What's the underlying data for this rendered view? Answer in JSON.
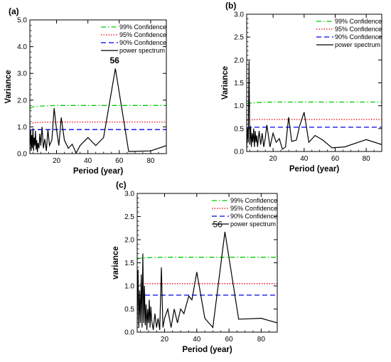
{
  "chart_data": [
    {
      "type": "line",
      "panel_label": "(a)",
      "xlabel": "Period (year)",
      "ylabel": "Variance",
      "xlim": [
        3,
        90
      ],
      "ylim": [
        0,
        5
      ],
      "xticks": [
        20,
        40,
        60,
        80
      ],
      "xtick_labels": [
        "20",
        "40",
        "60",
        "80"
      ],
      "yticks": [
        0,
        1,
        2,
        3,
        4,
        5
      ],
      "ytick_labels": [
        "0.0",
        "1.0",
        "2.0",
        "3.0",
        "4.0",
        "5.0"
      ],
      "legend_position": "top-right",
      "annotations": [
        {
          "text": "56",
          "x": 57,
          "y": 3.38
        }
      ],
      "series": [
        {
          "name": "99% Confidence",
          "color": "#00cc00",
          "style": "dashdot",
          "x": [
            3,
            5,
            10,
            20,
            40,
            90
          ],
          "y": [
            1.7,
            1.75,
            1.78,
            1.8,
            1.8,
            1.8
          ]
        },
        {
          "name": "95% Confidence",
          "color": "#ee0000",
          "style": "dotted",
          "x": [
            3,
            5,
            10,
            20,
            40,
            90
          ],
          "y": [
            1.12,
            1.15,
            1.17,
            1.18,
            1.18,
            1.18
          ]
        },
        {
          "name": "90% Confidence",
          "color": "#0000ee",
          "style": "dashed",
          "x": [
            3,
            5,
            10,
            20,
            40,
            90
          ],
          "y": [
            0.88,
            0.89,
            0.9,
            0.9,
            0.9,
            0.9
          ]
        },
        {
          "name": "power spectrum",
          "color": "#000000",
          "style": "solid",
          "x": [
            3,
            3.4,
            3.8,
            4.2,
            4.6,
            5,
            5.4,
            5.8,
            6.2,
            6.6,
            7,
            7.4,
            7.8,
            8.2,
            8.8,
            9.4,
            10,
            10.8,
            11.6,
            12.5,
            13.5,
            14.5,
            15.5,
            17,
            18.5,
            20,
            21.5,
            23,
            25,
            27.5,
            30,
            32.5,
            35,
            40,
            45,
            50,
            57.5,
            66,
            80,
            90
          ],
          "y": [
            0.3,
            0.9,
            0.1,
            0.7,
            0.2,
            0.95,
            0.1,
            0.6,
            0.3,
            0.85,
            0.15,
            0.5,
            0.05,
            0.4,
            0.2,
            0.75,
            0.3,
            1.0,
            0.2,
            0.55,
            0.1,
            0.9,
            0.3,
            0.5,
            1.7,
            0.9,
            0.3,
            1.35,
            0.5,
            0.2,
            0.35,
            0.02,
            0.3,
            0.6,
            0.3,
            0.6,
            3.18,
            0.08,
            0.1,
            0.3
          ]
        }
      ]
    },
    {
      "type": "line",
      "panel_label": "(b)",
      "xlabel": "Period (year)",
      "ylabel": "Variance",
      "xlim": [
        3,
        90
      ],
      "ylim": [
        0,
        3
      ],
      "xticks": [
        20,
        40,
        60,
        80
      ],
      "xtick_labels": [
        "20",
        "40",
        "60",
        "80"
      ],
      "yticks": [
        0,
        0.5,
        1,
        1.5,
        2,
        2.5,
        3
      ],
      "ytick_labels": [
        "0.0",
        "0.5",
        "1.0",
        "1.5",
        "2.0",
        "2.5",
        "3.0"
      ],
      "legend_position": "top-right",
      "annotations": [],
      "series": [
        {
          "name": "99% Confidence",
          "color": "#00cc00",
          "style": "dashdot",
          "x": [
            3,
            5,
            10,
            20,
            40,
            90
          ],
          "y": [
            1.04,
            1.06,
            1.07,
            1.08,
            1.08,
            1.08
          ]
        },
        {
          "name": "95% Confidence",
          "color": "#ee0000",
          "style": "dotted",
          "x": [
            3,
            5,
            10,
            20,
            40,
            90
          ],
          "y": [
            0.68,
            0.69,
            0.7,
            0.7,
            0.7,
            0.7
          ]
        },
        {
          "name": "90% Confidence",
          "color": "#0000ee",
          "style": "dashed",
          "x": [
            3,
            5,
            10,
            20,
            40,
            90
          ],
          "y": [
            0.52,
            0.53,
            0.53,
            0.53,
            0.53,
            0.53
          ]
        },
        {
          "name": "power spectrum",
          "color": "#000000",
          "style": "solid",
          "x": [
            3,
            3.5,
            4,
            4.5,
            5,
            5.5,
            6,
            6.5,
            7,
            7.5,
            8,
            8.5,
            9,
            9.5,
            10,
            11,
            12,
            13,
            14,
            15,
            16,
            18,
            20,
            22,
            24,
            26,
            28,
            30,
            32,
            35,
            37,
            40,
            43,
            47,
            52,
            58,
            66,
            80,
            90
          ],
          "y": [
            0.1,
            0.5,
            0.2,
            1.98,
            0.15,
            0.55,
            0.1,
            0.4,
            0.2,
            0.5,
            0.1,
            0.45,
            0.2,
            0.35,
            0.1,
            0.45,
            0.15,
            0.4,
            0.1,
            0.3,
            0.58,
            0.1,
            0.4,
            0.2,
            0.28,
            0.05,
            0.1,
            0.75,
            0.22,
            0.25,
            0.55,
            0.86,
            0.2,
            0.35,
            0.25,
            0.08,
            0.1,
            0.26,
            0.15
          ]
        }
      ]
    },
    {
      "type": "line",
      "panel_label": "(c)",
      "xlabel": "Period (year)",
      "ylabel": "variance",
      "xlim": [
        3,
        90
      ],
      "ylim": [
        0,
        3
      ],
      "xticks": [
        20,
        40,
        60,
        80
      ],
      "xtick_labels": [
        "20",
        "40",
        "60",
        "80"
      ],
      "yticks": [
        0,
        0.5,
        1,
        1.5,
        2,
        2.5,
        3
      ],
      "ytick_labels": [
        "0.0",
        "0.5",
        "1.0",
        "1.5",
        "2.0",
        "2.5",
        "3.0"
      ],
      "legend_position": "top-right",
      "annotations": [
        {
          "text": "56",
          "x": 53,
          "y": 2.27
        }
      ],
      "series": [
        {
          "name": "99% Confidence",
          "color": "#00cc00",
          "style": "dashdot",
          "x": [
            3,
            5,
            10,
            20,
            40,
            90
          ],
          "y": [
            1.58,
            1.6,
            1.61,
            1.62,
            1.62,
            1.62
          ]
        },
        {
          "name": "95% Confidence",
          "color": "#ee0000",
          "style": "dotted",
          "x": [
            3,
            5,
            10,
            20,
            40,
            90
          ],
          "y": [
            1.03,
            1.04,
            1.05,
            1.05,
            1.05,
            1.05
          ]
        },
        {
          "name": "90% Confidence",
          "color": "#0000ee",
          "style": "dashed",
          "x": [
            3,
            5,
            10,
            20,
            40,
            90
          ],
          "y": [
            0.79,
            0.8,
            0.8,
            0.8,
            0.8,
            0.8
          ]
        },
        {
          "name": "power spectrum",
          "color": "#000000",
          "style": "solid",
          "x": [
            3,
            3.5,
            4,
            4.5,
            5,
            5.5,
            6,
            6.5,
            7,
            7.5,
            8,
            8.5,
            9,
            9.5,
            10,
            10.5,
            11,
            11.5,
            12,
            13,
            14,
            15,
            16,
            17,
            18,
            19,
            20,
            22,
            24,
            26,
            28,
            30,
            32,
            35,
            37,
            40,
            45,
            50,
            57.5,
            66,
            80,
            90
          ],
          "y": [
            0.2,
            1.35,
            0.1,
            0.9,
            0.2,
            1.25,
            0.1,
            1.7,
            0.2,
            1.0,
            0.15,
            0.6,
            0.05,
            0.5,
            0.2,
            0.7,
            0.1,
            0.55,
            0.25,
            0.05,
            0.4,
            0.1,
            0.3,
            0.05,
            1.4,
            0.1,
            0.3,
            0.5,
            0.1,
            0.5,
            0.2,
            0.5,
            0.4,
            0.78,
            0.7,
            1.3,
            0.3,
            0.1,
            2.17,
            0.28,
            0.3,
            0.2
          ]
        }
      ]
    }
  ]
}
